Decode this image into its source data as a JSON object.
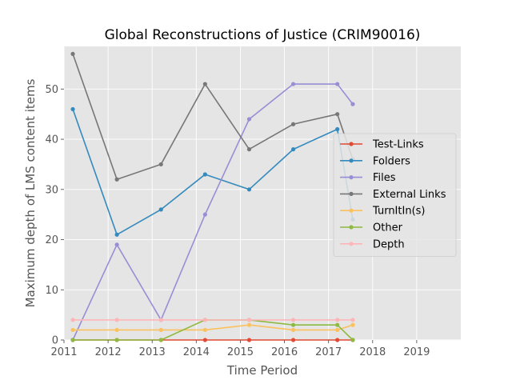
{
  "chart_data": {
    "type": "line",
    "title": "Global Reconstructions of Justice (CRIM90016)",
    "xlabel": "Time Period",
    "ylabel": "Maximum depth of LMS content items",
    "xlim": [
      2011.0,
      2020.0
    ],
    "ylim": [
      0,
      58.5
    ],
    "xticks": [
      2011,
      2012,
      2013,
      2014,
      2015,
      2016,
      2017,
      2018,
      2019
    ],
    "yticks": [
      0,
      10,
      20,
      30,
      40,
      50
    ],
    "grid": true,
    "legend_position": "center-right",
    "x": [
      2011.2,
      2012.2,
      2013.2,
      2014.2,
      2015.2,
      2016.2,
      2017.2,
      2017.55
    ],
    "series": [
      {
        "name": "Test-Links",
        "color": "#e24a33",
        "values": [
          0,
          0,
          0,
          0,
          0,
          0,
          0,
          0
        ]
      },
      {
        "name": "Folders",
        "color": "#348abd",
        "values": [
          46,
          21,
          26,
          33,
          30,
          38,
          42,
          24
        ]
      },
      {
        "name": "Files",
        "color": "#988ed5",
        "values": [
          0,
          19,
          4,
          25,
          44,
          51,
          51,
          47
        ]
      },
      {
        "name": "External Links",
        "color": "#777777",
        "values": [
          57,
          32,
          35,
          51,
          38,
          43,
          45,
          36
        ]
      },
      {
        "name": "TurnItIn(s)",
        "color": "#fbc15e",
        "values": [
          2,
          2,
          2,
          2,
          3,
          2,
          2,
          3
        ]
      },
      {
        "name": "Other",
        "color": "#8eba42",
        "values": [
          0,
          0,
          0,
          4,
          4,
          3,
          3,
          0
        ]
      },
      {
        "name": "Depth",
        "color": "#ffb5b8",
        "values": [
          4,
          4,
          4,
          4,
          4,
          4,
          4,
          4
        ]
      }
    ]
  }
}
